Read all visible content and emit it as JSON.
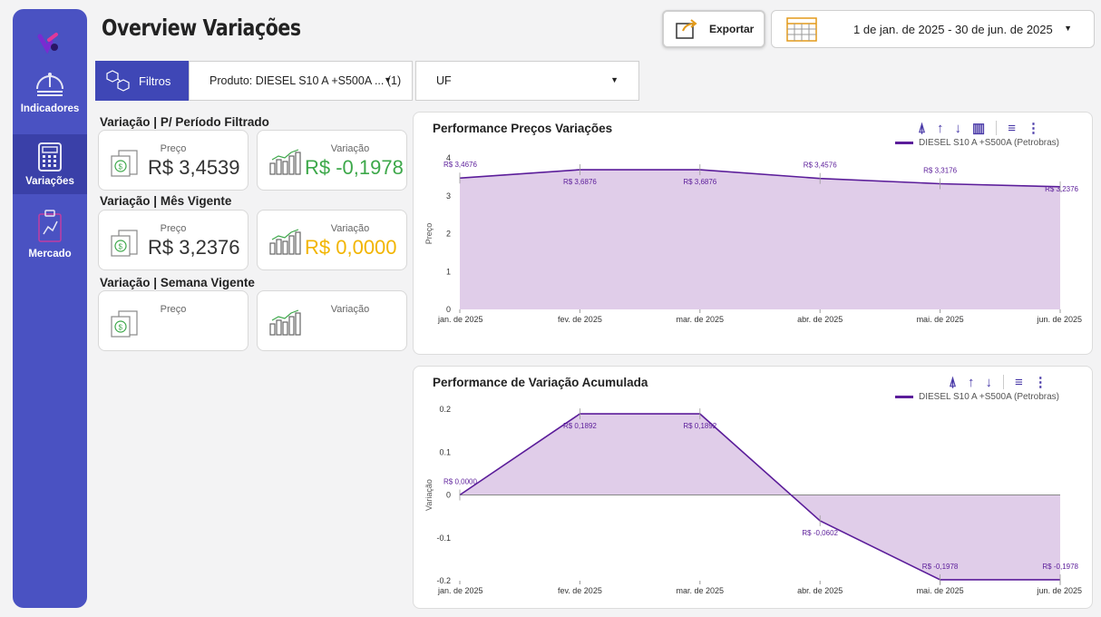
{
  "app": {
    "title": "Overview Variações"
  },
  "sidebar": {
    "items": [
      {
        "label": "Indicadores",
        "icon": "dashboard-gauge-icon"
      },
      {
        "label": "Variações",
        "icon": "calculator-icon"
      },
      {
        "label": "Mercado",
        "icon": "clipboard-icon"
      }
    ]
  },
  "header": {
    "export_label": "Exportar",
    "date_range": "1 de jan. de 2025 - 30 de jun. de 2025"
  },
  "filters": {
    "label": "Filtros",
    "produto": "Produto: DIESEL S10 A +S500A ... (1)",
    "uf": "UF"
  },
  "kpis": [
    {
      "title": "Variação | P/ Período Filtrado",
      "preco_caption": "Preço",
      "preco": "R$ 3,4539",
      "var_caption": "Variação",
      "variacao": "R$ -0,1978",
      "var_color": "#3da84a"
    },
    {
      "title": "Variação | Mês Vigente",
      "preco_caption": "Preço",
      "preco": "R$ 3,2376",
      "var_caption": "Variação",
      "variacao": "R$ 0,0000",
      "var_color": "#f2b500"
    },
    {
      "title": "Variação | Semana Vigente",
      "preco_caption": "Preço",
      "preco": "",
      "var_caption": "Variação",
      "variacao": "",
      "var_color": "#333333"
    }
  ],
  "chart_data": [
    {
      "type": "area",
      "title": "Performance Preços Variações",
      "ylabel": "Preço",
      "xlabel": "",
      "x": [
        "jan. de 2025",
        "fev. de 2025",
        "mar. de 2025",
        "abr. de 2025",
        "mai. de 2025",
        "jun. de 2025"
      ],
      "ylim": [
        0,
        4
      ],
      "yticks": [
        0,
        1,
        2,
        3,
        4
      ],
      "series": [
        {
          "name": "DIESEL S10 A +S500A (Petrobras)",
          "values": [
            3.4676,
            3.6876,
            3.6876,
            3.4576,
            3.3176,
            3.2376
          ],
          "labels": [
            "R$ 3,4676",
            "R$ 3,6876",
            "R$ 3,6876",
            "R$ 3,4576",
            "R$ 3,3176",
            "R$ 3,2376"
          ]
        }
      ],
      "legend": "top-right",
      "color": "#5b1d9a",
      "fill": "#e0cde9"
    },
    {
      "type": "area",
      "title": "Performance de Variação Acumulada",
      "ylabel": "Variação",
      "xlabel": "",
      "x": [
        "jan. de 2025",
        "fev. de 2025",
        "mar. de 2025",
        "abr. de 2025",
        "mai. de 2025",
        "jun. de 2025"
      ],
      "ylim": [
        -0.2,
        0.2
      ],
      "yticks": [
        -0.2,
        -0.1,
        0,
        0.1,
        0.2
      ],
      "ytick_labels": [
        "-0.2",
        "-0.1",
        "0",
        "0.1",
        "0.2"
      ],
      "series": [
        {
          "name": "DIESEL S10 A +S500A (Petrobras)",
          "values": [
            0.0,
            0.1892,
            0.1892,
            -0.0602,
            -0.1978,
            -0.1978
          ],
          "labels": [
            "R$ 0,0000",
            "R$ 0,1892",
            "R$ 0,1892",
            "R$ -0,0602",
            "R$ -0,1978",
            "R$ -0,1978"
          ]
        }
      ],
      "legend": "top-right",
      "color": "#5b1d9a",
      "fill": "#e0cde9"
    }
  ]
}
